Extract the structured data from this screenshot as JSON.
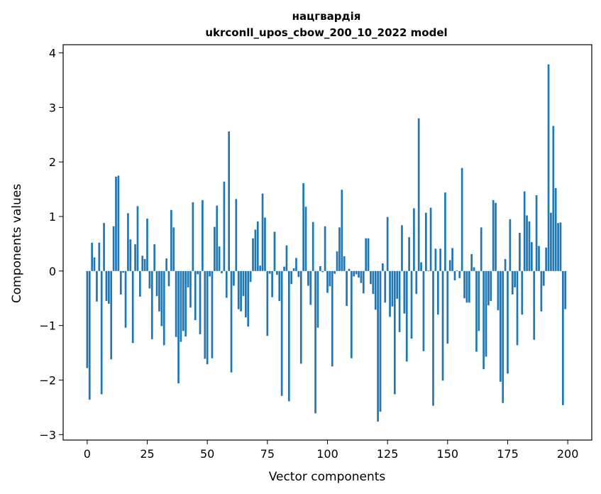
{
  "chart_data": {
    "type": "bar",
    "title": "нацгвардія",
    "subtitle": "ukrconll_upos_cbow_200_10_2022 model",
    "xlabel": "Vector components",
    "ylabel": "Components values",
    "xlim": [
      -10,
      210
    ],
    "ylim": [
      -3.1,
      4.15
    ],
    "xticks": [
      0,
      25,
      50,
      75,
      100,
      125,
      150,
      175,
      200
    ],
    "yticks": [
      -3,
      -2,
      -1,
      0,
      1,
      2,
      3,
      4
    ],
    "grid": false,
    "legend": "none",
    "color": "#1f77b4",
    "x": [
      0,
      1,
      2,
      3,
      4,
      5,
      6,
      7,
      8,
      9,
      10,
      11,
      12,
      13,
      14,
      15,
      16,
      17,
      18,
      19,
      20,
      21,
      22,
      23,
      24,
      25,
      26,
      27,
      28,
      29,
      30,
      31,
      32,
      33,
      34,
      35,
      36,
      37,
      38,
      39,
      40,
      41,
      42,
      43,
      44,
      45,
      46,
      47,
      48,
      49,
      50,
      51,
      52,
      53,
      54,
      55,
      56,
      57,
      58,
      59,
      60,
      61,
      62,
      63,
      64,
      65,
      66,
      67,
      68,
      69,
      70,
      71,
      72,
      73,
      74,
      75,
      76,
      77,
      78,
      79,
      80,
      81,
      82,
      83,
      84,
      85,
      86,
      87,
      88,
      89,
      90,
      91,
      92,
      93,
      94,
      95,
      96,
      97,
      98,
      99,
      100,
      101,
      102,
      103,
      104,
      105,
      106,
      107,
      108,
      109,
      110,
      111,
      112,
      113,
      114,
      115,
      116,
      117,
      118,
      119,
      120,
      121,
      122,
      123,
      124,
      125,
      126,
      127,
      128,
      129,
      130,
      131,
      132,
      133,
      134,
      135,
      136,
      137,
      138,
      139,
      140,
      141,
      142,
      143,
      144,
      145,
      146,
      147,
      148,
      149,
      150,
      151,
      152,
      153,
      154,
      155,
      156,
      157,
      158,
      159,
      160,
      161,
      162,
      163,
      164,
      165,
      166,
      167,
      168,
      169,
      170,
      171,
      172,
      173,
      174,
      175,
      176,
      177,
      178,
      179,
      180,
      181,
      182,
      183,
      184,
      185,
      186,
      187,
      188,
      189,
      190,
      191,
      192,
      193,
      194,
      195,
      196,
      197,
      198,
      199
    ],
    "values": [
      -1.78,
      -2.36,
      0.52,
      0.25,
      -0.56,
      0.52,
      -2.26,
      0.88,
      -0.55,
      -0.6,
      -1.62,
      0.82,
      1.73,
      1.75,
      -0.43,
      -0.03,
      -1.04,
      1.06,
      0.58,
      -1.32,
      0.49,
      1.19,
      -0.47,
      0.28,
      0.22,
      0.96,
      -0.32,
      -1.25,
      0.49,
      -0.46,
      -0.74,
      -1.01,
      -1.36,
      0.23,
      -0.28,
      1.12,
      0.8,
      -1.21,
      -2.06,
      -1.3,
      -1.1,
      -1.2,
      -0.3,
      -0.67,
      1.26,
      -0.9,
      -0.06,
      -1.16,
      1.3,
      -1.61,
      -1.71,
      -0.1,
      -1.6,
      0.81,
      1.2,
      0.45,
      -0.04,
      1.64,
      -0.49,
      2.56,
      -1.86,
      -0.27,
      1.32,
      -0.7,
      -0.74,
      -0.46,
      -0.85,
      -1.02,
      -0.2,
      0.6,
      0.76,
      0.91,
      0.1,
      1.42,
      0.98,
      -1.19,
      -0.05,
      -0.48,
      0.72,
      -0.07,
      -0.55,
      -2.29,
      0.08,
      0.47,
      -2.39,
      -0.24,
      0.05,
      0.24,
      -0.11,
      -1.7,
      1.61,
      1.18,
      -0.27,
      -0.62,
      0.9,
      -2.61,
      -1.04,
      0.09,
      -0.02,
      0.82,
      -0.4,
      -0.28,
      -1.75,
      -0.05,
      0.36,
      0.8,
      1.49,
      0.27,
      -0.64,
      0.04,
      -1.6,
      -0.1,
      -0.06,
      -0.12,
      -0.22,
      -0.41,
      0.6,
      0.6,
      -0.24,
      -0.42,
      -0.71,
      -2.76,
      -2.58,
      0.14,
      -0.58,
      0.99,
      -0.84,
      -0.65,
      -2.26,
      -0.51,
      -1.12,
      0.84,
      -0.78,
      -1.66,
      0.62,
      -1.24,
      1.15,
      -0.42,
      2.8,
      0.16,
      -1.47,
      1.07,
      0.01,
      1.16,
      -2.47,
      0.41,
      -0.8,
      0.41,
      -2.01,
      1.44,
      -1.33,
      0.2,
      0.42,
      -0.17,
      0.01,
      -0.13,
      1.89,
      -0.5,
      -0.58,
      -0.58,
      0.31,
      0.07,
      -1.48,
      -1.1,
      0.8,
      -1.8,
      -1.57,
      -0.63,
      -0.55,
      1.3,
      1.25,
      -0.72,
      -2.03,
      -2.42,
      0.22,
      -1.88,
      0.95,
      -0.43,
      -0.3,
      -1.36,
      0.7,
      -0.8,
      1.46,
      1.02,
      0.91,
      0.53,
      -1.26,
      1.39,
      0.46,
      -0.74,
      -0.27,
      0.43,
      3.79,
      1.07,
      2.66,
      1.52,
      0.88,
      0.89,
      -2.46,
      -0.7
    ]
  }
}
